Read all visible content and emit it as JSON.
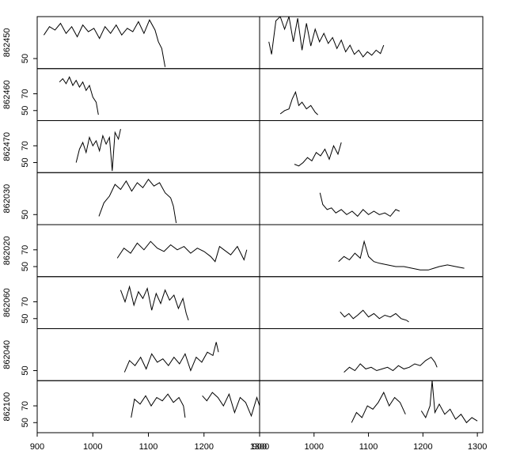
{
  "chart_data": [
    {
      "type": "line",
      "ylabel": "862450",
      "color": "#000000",
      "xlim": [
        900,
        1300
      ],
      "ylim": [
        38,
        100
      ],
      "yticks": [
        50
      ],
      "x": [
        912,
        922,
        932,
        942,
        952,
        962,
        972,
        982,
        992,
        1002,
        1012,
        1022,
        1032,
        1042,
        1052,
        1062,
        1072,
        1082,
        1092,
        1102,
        1112,
        1118,
        1124,
        1130
      ],
      "values": [
        78,
        88,
        84,
        92,
        80,
        88,
        76,
        90,
        82,
        86,
        74,
        88,
        80,
        90,
        78,
        86,
        82,
        94,
        80,
        96,
        84,
        70,
        62,
        40
      ]
    },
    {
      "type": "line",
      "color": "#000000",
      "xlim": [
        900,
        1310
      ],
      "ylim": [
        38,
        100
      ],
      "x": [
        917,
        922,
        930,
        938,
        946,
        954,
        962,
        970,
        978,
        986,
        994,
        1002,
        1010,
        1018,
        1026,
        1034,
        1042,
        1050,
        1058,
        1066,
        1074,
        1082,
        1090,
        1098,
        1106,
        1114,
        1122,
        1128
      ],
      "values": [
        70,
        55,
        95,
        100,
        85,
        100,
        70,
        98,
        60,
        92,
        65,
        85,
        70,
        80,
        68,
        75,
        62,
        72,
        58,
        66,
        55,
        60,
        52,
        58,
        54,
        60,
        56,
        66
      ]
    },
    {
      "type": "line",
      "ylabel": "862460",
      "color": "#000000",
      "xlim": [
        900,
        1300
      ],
      "ylim": [
        38,
        100
      ],
      "yticks": [
        50,
        70
      ],
      "x": [
        940,
        946,
        952,
        958,
        964,
        970,
        976,
        982,
        988,
        994,
        1000,
        1006,
        1010
      ],
      "values": [
        84,
        88,
        82,
        90,
        80,
        86,
        78,
        84,
        74,
        80,
        66,
        60,
        45
      ]
    },
    {
      "type": "line",
      "color": "#000000",
      "xlim": [
        900,
        1310
      ],
      "ylim": [
        38,
        100
      ],
      "x": [
        938,
        946,
        954,
        960,
        966,
        972,
        978,
        986,
        994,
        1002,
        1007
      ],
      "values": [
        46,
        50,
        52,
        64,
        72,
        56,
        60,
        52,
        56,
        48,
        45
      ]
    },
    {
      "type": "line",
      "ylabel": "862470",
      "color": "#000000",
      "xlim": [
        900,
        1300
      ],
      "ylim": [
        38,
        100
      ],
      "yticks": [
        50,
        70
      ],
      "x": [
        970,
        976,
        982,
        988,
        994,
        1000,
        1006,
        1012,
        1018,
        1024,
        1030,
        1035,
        1040,
        1046,
        1050
      ],
      "values": [
        50,
        66,
        74,
        62,
        80,
        70,
        76,
        64,
        82,
        72,
        80,
        40,
        86,
        78,
        90
      ]
    },
    {
      "type": "line",
      "color": "#000000",
      "xlim": [
        900,
        1310
      ],
      "ylim": [
        38,
        100
      ],
      "x": [
        964,
        972,
        980,
        988,
        996,
        1004,
        1012,
        1020,
        1028,
        1036,
        1044,
        1050
      ],
      "values": [
        48,
        46,
        50,
        56,
        52,
        62,
        58,
        66,
        54,
        70,
        60,
        74
      ]
    },
    {
      "type": "line",
      "ylabel": "862030",
      "color": "#000000",
      "xlim": [
        900,
        1300
      ],
      "ylim": [
        38,
        100
      ],
      "yticks": [
        50
      ],
      "x": [
        1011,
        1020,
        1030,
        1040,
        1050,
        1060,
        1070,
        1080,
        1090,
        1100,
        1110,
        1120,
        1130,
        1140,
        1145,
        1150
      ],
      "values": [
        48,
        64,
        72,
        86,
        80,
        90,
        78,
        88,
        82,
        92,
        84,
        88,
        76,
        70,
        60,
        40
      ]
    },
    {
      "type": "line",
      "color": "#000000",
      "xlim": [
        900,
        1310
      ],
      "ylim": [
        38,
        100
      ],
      "x": [
        1011,
        1016,
        1024,
        1032,
        1040,
        1050,
        1060,
        1070,
        1080,
        1090,
        1100,
        1110,
        1120,
        1130,
        1140,
        1150,
        1157
      ],
      "values": [
        76,
        62,
        56,
        58,
        52,
        56,
        50,
        54,
        48,
        56,
        50,
        54,
        50,
        52,
        48,
        56,
        54
      ]
    },
    {
      "type": "line",
      "ylabel": "862020",
      "color": "#000000",
      "xlim": [
        900,
        1300
      ],
      "ylim": [
        38,
        100
      ],
      "yticks": [
        50,
        70
      ],
      "x": [
        1044,
        1056,
        1068,
        1080,
        1092,
        1104,
        1116,
        1128,
        1140,
        1152,
        1164,
        1176,
        1188,
        1200,
        1212,
        1220,
        1228,
        1236,
        1248,
        1260,
        1272,
        1277
      ],
      "values": [
        60,
        72,
        66,
        78,
        70,
        80,
        72,
        68,
        76,
        70,
        74,
        66,
        72,
        68,
        62,
        56,
        74,
        70,
        64,
        74,
        58,
        70
      ]
    },
    {
      "type": "line",
      "color": "#000000",
      "xlim": [
        900,
        1310
      ],
      "ylim": [
        38,
        100
      ],
      "x": [
        1045,
        1055,
        1065,
        1075,
        1085,
        1092,
        1100,
        1110,
        1120,
        1135,
        1150,
        1165,
        1180,
        1195,
        1210,
        1220,
        1230,
        1245,
        1260,
        1276
      ],
      "values": [
        56,
        62,
        58,
        66,
        60,
        80,
        62,
        56,
        54,
        52,
        50,
        50,
        48,
        46,
        46,
        48,
        50,
        52,
        50,
        48
      ]
    },
    {
      "type": "line",
      "ylabel": "862060",
      "color": "#000000",
      "xlim": [
        900,
        1300
      ],
      "ylim": [
        38,
        100
      ],
      "yticks": [
        50,
        70
      ],
      "x": [
        1050,
        1058,
        1066,
        1074,
        1082,
        1090,
        1098,
        1106,
        1114,
        1122,
        1130,
        1138,
        1146,
        1154,
        1162,
        1168,
        1172
      ],
      "values": [
        84,
        70,
        88,
        66,
        82,
        74,
        86,
        60,
        80,
        68,
        84,
        72,
        78,
        62,
        74,
        56,
        48
      ]
    },
    {
      "type": "line",
      "color": "#000000",
      "xlim": [
        900,
        1310
      ],
      "ylim": [
        38,
        100
      ],
      "x": [
        1048,
        1056,
        1064,
        1072,
        1080,
        1090,
        1100,
        1110,
        1120,
        1130,
        1140,
        1150,
        1160,
        1170,
        1174
      ],
      "values": [
        58,
        52,
        56,
        50,
        54,
        60,
        52,
        56,
        50,
        54,
        52,
        56,
        50,
        48,
        46
      ]
    },
    {
      "type": "line",
      "ylabel": "862040",
      "color": "#000000",
      "xlim": [
        900,
        1300
      ],
      "ylim": [
        38,
        100
      ],
      "yticks": [
        50
      ],
      "x": [
        1057,
        1066,
        1076,
        1086,
        1096,
        1106,
        1116,
        1126,
        1136,
        1146,
        1156,
        1166,
        1176,
        1186,
        1196,
        1206,
        1216,
        1222,
        1226
      ],
      "values": [
        48,
        62,
        56,
        66,
        52,
        70,
        60,
        64,
        56,
        66,
        58,
        70,
        50,
        66,
        60,
        72,
        68,
        84,
        72
      ]
    },
    {
      "type": "line",
      "color": "#000000",
      "xlim": [
        900,
        1310
      ],
      "ylim": [
        38,
        100
      ],
      "x": [
        1055,
        1065,
        1075,
        1085,
        1095,
        1105,
        1115,
        1125,
        1135,
        1145,
        1155,
        1165,
        1175,
        1185,
        1195,
        1205,
        1215,
        1222,
        1226
      ],
      "values": [
        48,
        54,
        50,
        58,
        52,
        54,
        50,
        52,
        54,
        50,
        56,
        52,
        54,
        58,
        56,
        62,
        66,
        60,
        54
      ]
    },
    {
      "type": "line",
      "ylabel": "862100",
      "color": "#000000",
      "xlim": [
        900,
        1300
      ],
      "ylim": [
        38,
        100
      ],
      "yticks": [
        50,
        70
      ],
      "xticks": [
        900,
        1000,
        1100,
        1200,
        1300
      ],
      "x": [
        1069,
        1075,
        1085,
        1095,
        1105,
        1115,
        1125,
        1135,
        1145,
        1155,
        1163,
        1166,
        1180,
        1197,
        1205,
        1215,
        1225,
        1235,
        1245,
        1255,
        1265,
        1275,
        1285,
        1295,
        1300
      ],
      "values": [
        56,
        78,
        72,
        82,
        70,
        80,
        76,
        84,
        74,
        80,
        70,
        56,
        null,
        82,
        76,
        86,
        80,
        70,
        84,
        62,
        80,
        74,
        58,
        80,
        70
      ]
    },
    {
      "type": "line",
      "color": "#000000",
      "xlim": [
        900,
        1310
      ],
      "ylim": [
        38,
        100
      ],
      "xticks": [
        900,
        1000,
        1100,
        1200,
        1300
      ],
      "x": [
        1069,
        1078,
        1088,
        1098,
        1108,
        1118,
        1128,
        1138,
        1148,
        1158,
        1168,
        1182,
        1197,
        1205,
        1213,
        1217,
        1222,
        1230,
        1240,
        1250,
        1260,
        1270,
        1280,
        1290,
        1300
      ],
      "values": [
        50,
        62,
        56,
        70,
        66,
        74,
        86,
        70,
        80,
        74,
        60,
        null,
        64,
        56,
        70,
        100,
        62,
        72,
        60,
        66,
        54,
        60,
        50,
        56,
        52
      ]
    }
  ]
}
